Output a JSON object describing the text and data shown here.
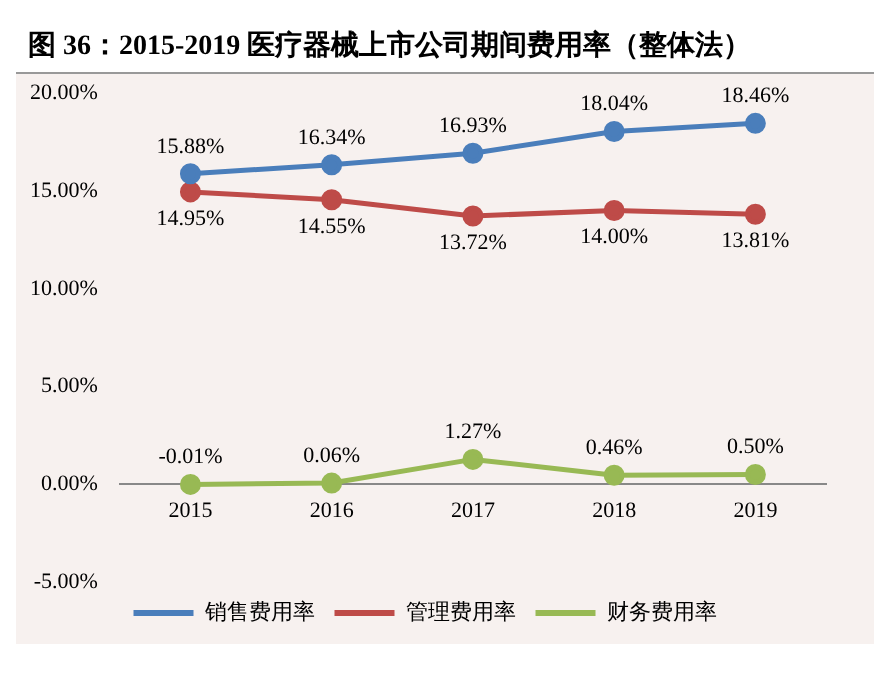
{
  "chart_data": {
    "type": "line",
    "title": "图 36：2015-2019 医疗器械上市公司期间费用率（整体法）",
    "categories": [
      "2015",
      "2016",
      "2017",
      "2018",
      "2019"
    ],
    "series": [
      {
        "name": "销售费用率",
        "color": "#4a7ebb",
        "values": [
          15.88,
          16.34,
          16.93,
          18.04,
          18.46
        ],
        "value_labels": [
          "15.88%",
          "16.34%",
          "16.93%",
          "18.04%",
          "18.46%"
        ]
      },
      {
        "name": "管理费用率",
        "color": "#be4b48",
        "values": [
          14.95,
          14.55,
          13.72,
          14.0,
          13.81
        ],
        "value_labels": [
          "14.95%",
          "14.55%",
          "13.72%",
          "14.00%",
          "13.81%"
        ]
      },
      {
        "name": "财务费用率",
        "color": "#98b954",
        "values": [
          -0.01,
          0.06,
          1.27,
          0.46,
          0.5
        ],
        "value_labels": [
          "-0.01%",
          "0.06%",
          "1.27%",
          "0.46%",
          "0.50%"
        ]
      }
    ],
    "ylim": [
      -5,
      20
    ],
    "yticks": [
      {
        "value": -5,
        "label": "-5.00%"
      },
      {
        "value": 0,
        "label": "0.00%"
      },
      {
        "value": 5,
        "label": "5.00%"
      },
      {
        "value": 10,
        "label": "10.00%"
      },
      {
        "value": 15,
        "label": "15.00%"
      },
      {
        "value": 20,
        "label": "20.00%"
      }
    ],
    "grid": false,
    "legend": "bottom",
    "marker": "circle",
    "line_style": "solid"
  }
}
